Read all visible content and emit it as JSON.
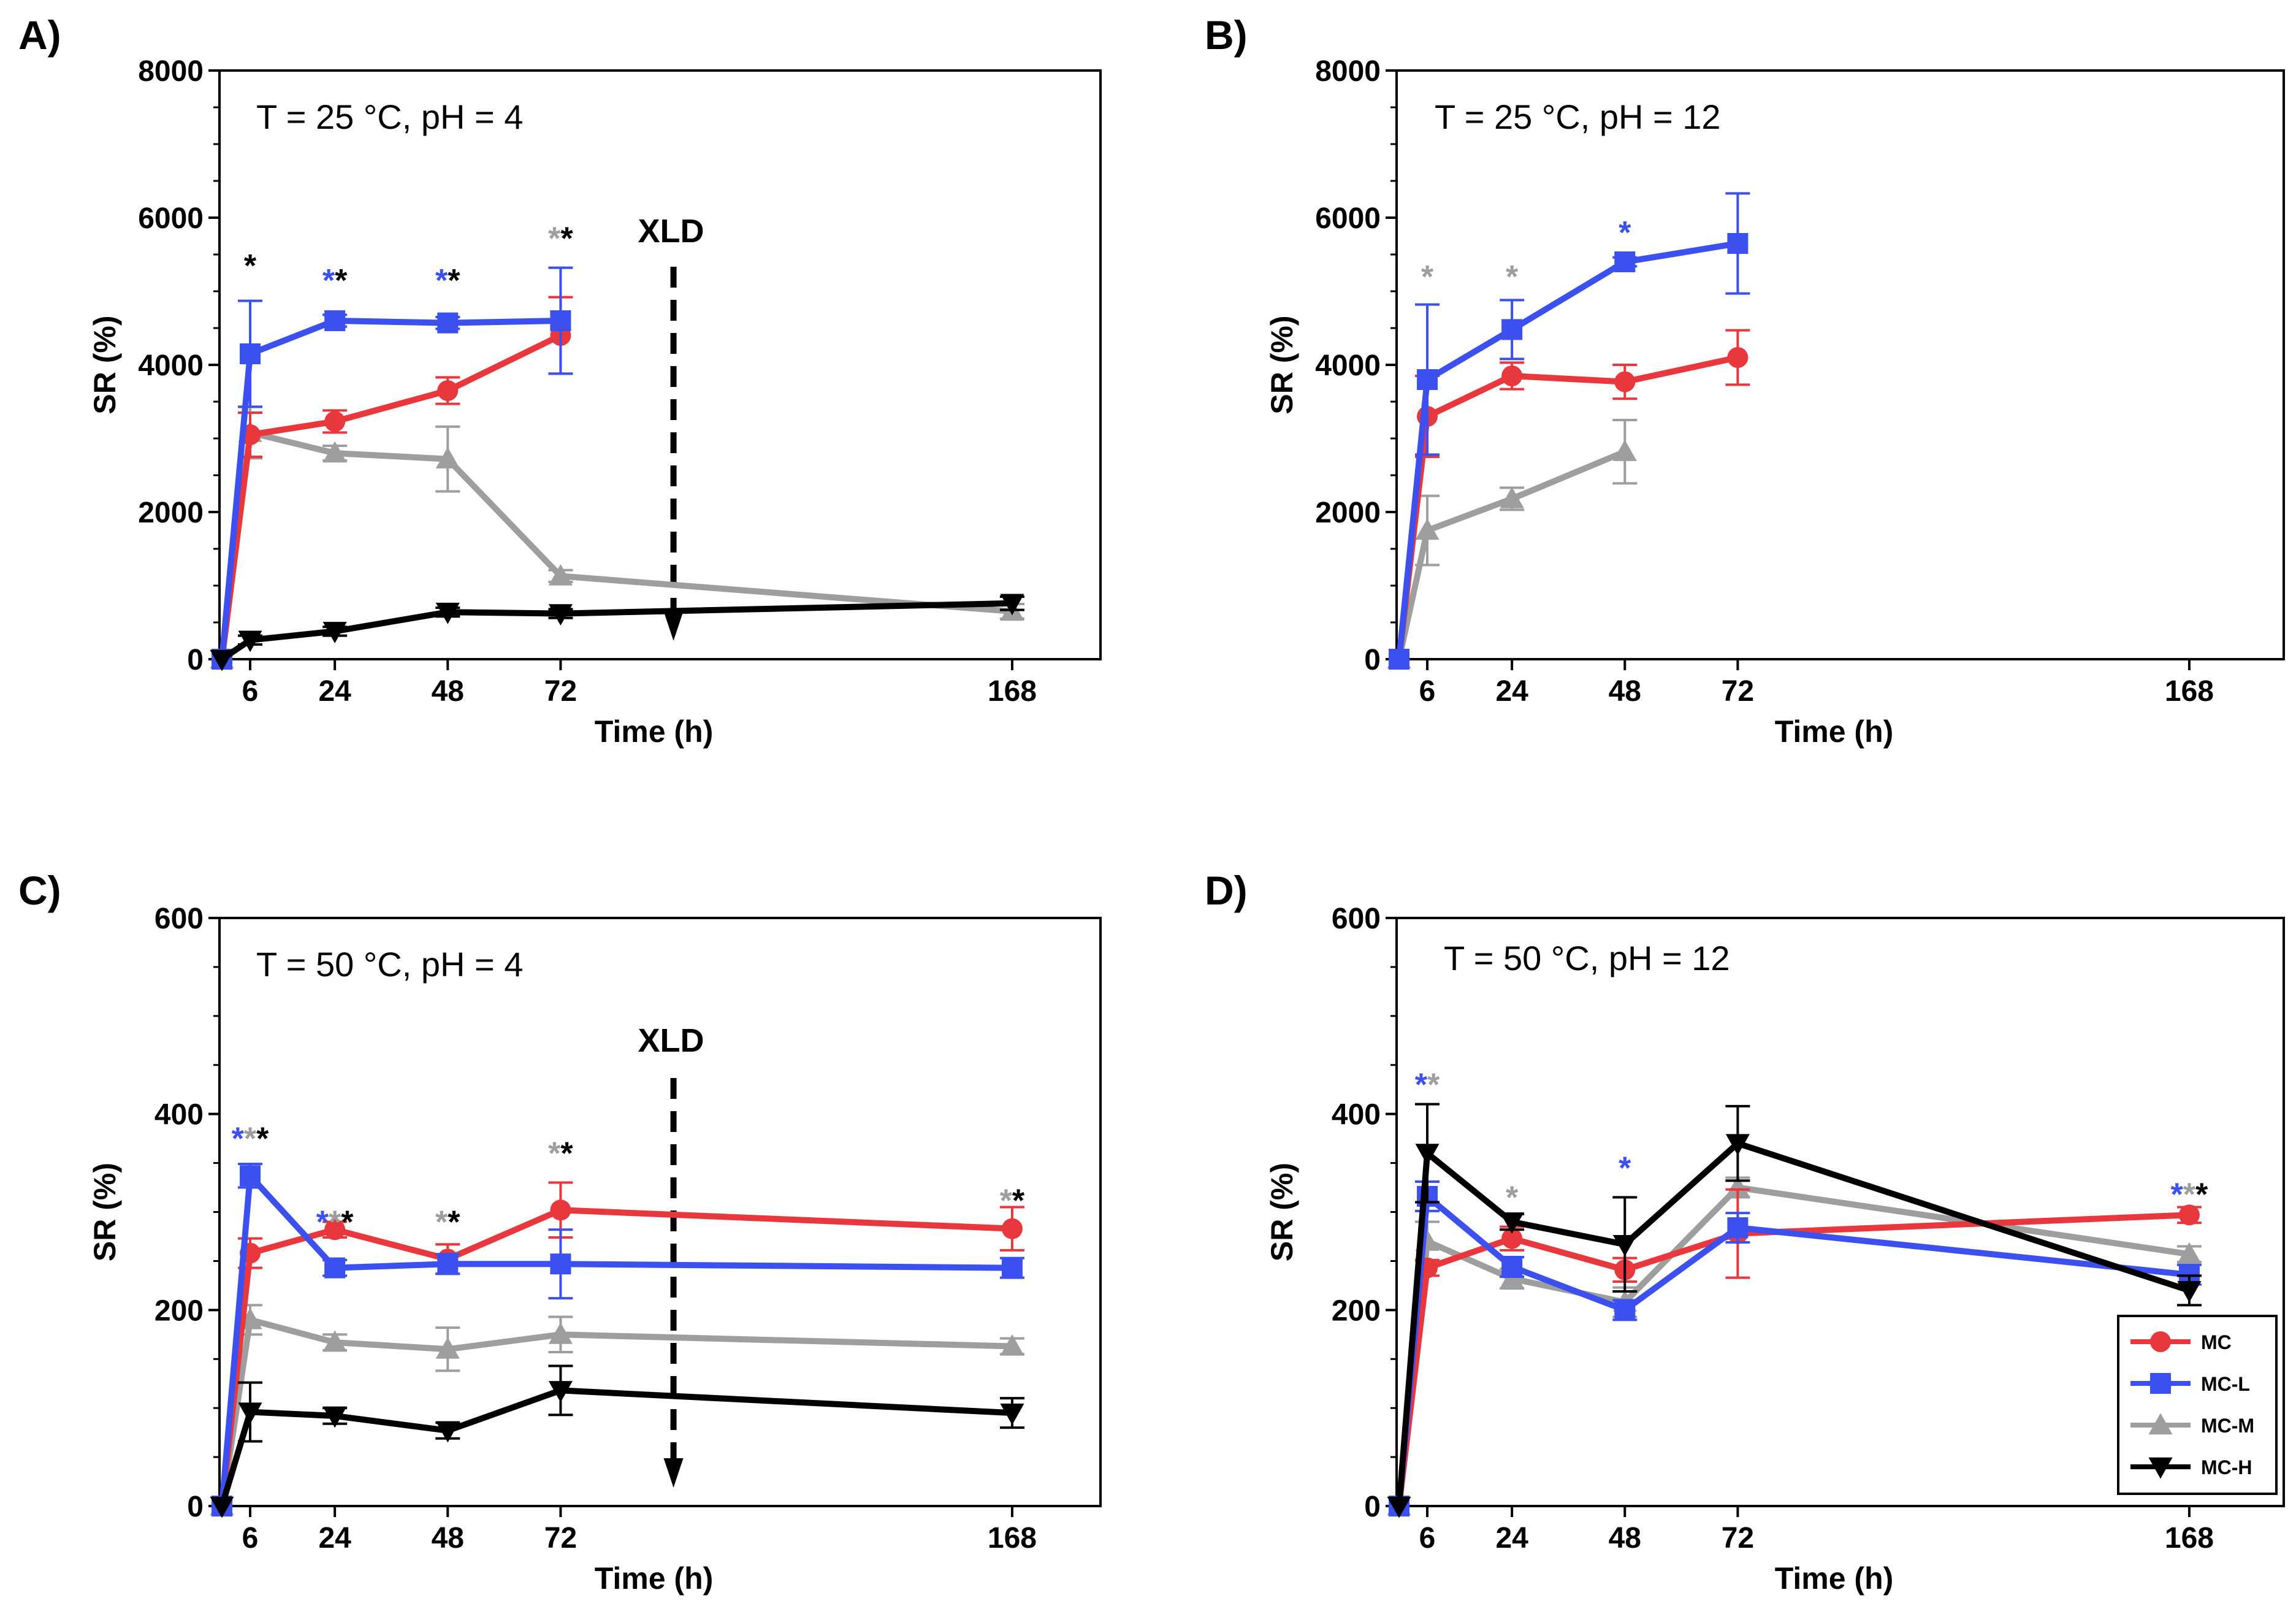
{
  "series_meta": [
    {
      "key": "MC",
      "name": "MC",
      "color": "#e8383d",
      "marker": "circle"
    },
    {
      "key": "MC-L",
      "name": "MC-L",
      "color": "#3c50f0",
      "marker": "square"
    },
    {
      "key": "MC-M",
      "name": "MC-M",
      "color": "#9e9e9e",
      "marker": "triangle-up"
    },
    {
      "key": "MC-H",
      "name": "MC-H",
      "color": "#000000",
      "marker": "triangle-down"
    }
  ],
  "chart_data": [
    {
      "panel": "A)",
      "type": "line",
      "condition": "T = 25 °C, pH = 4",
      "xlabel": "Time (h)",
      "ylabel": "SR (%)",
      "xticks": [
        6,
        24,
        48,
        72,
        168
      ],
      "yticks": [
        0,
        2000,
        4000,
        6000,
        8000
      ],
      "ylim": [
        0,
        8000
      ],
      "annotation": {
        "label": "XLD",
        "x": 96
      },
      "series": [
        {
          "name": "MC",
          "points": [
            {
              "x": 0,
              "y": 0,
              "err": 0
            },
            {
              "x": 6,
              "y": 3050,
              "err": 300
            },
            {
              "x": 24,
              "y": 3230,
              "err": 150
            },
            {
              "x": 48,
              "y": 3650,
              "err": 180
            },
            {
              "x": 72,
              "y": 4400,
              "err": 520
            }
          ]
        },
        {
          "name": "MC-L",
          "points": [
            {
              "x": 0,
              "y": 0,
              "err": 0
            },
            {
              "x": 6,
              "y": 4150,
              "err": 720
            },
            {
              "x": 24,
              "y": 4600,
              "err": 80
            },
            {
              "x": 48,
              "y": 4570,
              "err": 80
            },
            {
              "x": 72,
              "y": 4600,
              "err": 720
            }
          ]
        },
        {
          "name": "MC-M",
          "points": [
            {
              "x": 0,
              "y": 0,
              "err": 0
            },
            {
              "x": 6,
              "y": 3080,
              "err": 350
            },
            {
              "x": 24,
              "y": 2800,
              "err": 100
            },
            {
              "x": 48,
              "y": 2720,
              "err": 440
            },
            {
              "x": 72,
              "y": 1130,
              "err": 80
            },
            {
              "x": 168,
              "y": 650,
              "err": 100
            }
          ]
        },
        {
          "name": "MC-H",
          "points": [
            {
              "x": 0,
              "y": 0,
              "err": 0
            },
            {
              "x": 6,
              "y": 260,
              "err": 60
            },
            {
              "x": 24,
              "y": 380,
              "err": 60
            },
            {
              "x": 48,
              "y": 640,
              "err": 60
            },
            {
              "x": 72,
              "y": 620,
              "err": 60
            },
            {
              "x": 168,
              "y": 760,
              "err": 90
            }
          ]
        }
      ],
      "stars": [
        {
          "x": 6,
          "y": 5350,
          "colors": [
            "#000000"
          ]
        },
        {
          "x": 24,
          "y": 5150,
          "colors": [
            "#3c50f0",
            "#000000"
          ]
        },
        {
          "x": 48,
          "y": 5150,
          "colors": [
            "#3c50f0",
            "#000000"
          ]
        },
        {
          "x": 72,
          "y": 5720,
          "colors": [
            "#9e9e9e",
            "#000000"
          ]
        }
      ]
    },
    {
      "panel": "B)",
      "type": "line",
      "condition": "T = 25 °C, pH = 12",
      "xlabel": "Time (h)",
      "ylabel": "SR (%)",
      "xticks": [
        6,
        24,
        48,
        72,
        168
      ],
      "yticks": [
        0,
        2000,
        4000,
        6000,
        8000
      ],
      "ylim": [
        0,
        8000
      ],
      "series": [
        {
          "name": "MC",
          "points": [
            {
              "x": 0,
              "y": 0,
              "err": 0
            },
            {
              "x": 6,
              "y": 3300,
              "err": 550
            },
            {
              "x": 24,
              "y": 3850,
              "err": 180
            },
            {
              "x": 48,
              "y": 3770,
              "err": 230
            },
            {
              "x": 72,
              "y": 4100,
              "err": 370
            }
          ]
        },
        {
          "name": "MC-L",
          "points": [
            {
              "x": 0,
              "y": 0,
              "err": 0
            },
            {
              "x": 6,
              "y": 3800,
              "err": 1020
            },
            {
              "x": 24,
              "y": 4480,
              "err": 400
            },
            {
              "x": 48,
              "y": 5400,
              "err": 60
            },
            {
              "x": 72,
              "y": 5650,
              "err": 680
            }
          ]
        },
        {
          "name": "MC-M",
          "points": [
            {
              "x": 0,
              "y": 0,
              "err": 0
            },
            {
              "x": 6,
              "y": 1750,
              "err": 470
            },
            {
              "x": 24,
              "y": 2180,
              "err": 150
            },
            {
              "x": 48,
              "y": 2820,
              "err": 430
            }
          ]
        }
      ],
      "stars": [
        {
          "x": 6,
          "y": 5200,
          "colors": [
            "#9e9e9e"
          ]
        },
        {
          "x": 24,
          "y": 5200,
          "colors": [
            "#9e9e9e"
          ]
        },
        {
          "x": 48,
          "y": 5800,
          "colors": [
            "#3c50f0"
          ]
        }
      ]
    },
    {
      "panel": "C)",
      "type": "line",
      "condition": "T = 50 °C, pH = 4",
      "xlabel": "Time (h)",
      "ylabel": "SR (%)",
      "xticks": [
        6,
        24,
        48,
        72,
        168
      ],
      "yticks": [
        0,
        200,
        400,
        600
      ],
      "ylim": [
        0,
        600
      ],
      "annotation": {
        "label": "XLD",
        "x": 96
      },
      "series": [
        {
          "name": "MC",
          "points": [
            {
              "x": 0,
              "y": 0,
              "err": 0
            },
            {
              "x": 6,
              "y": 258,
              "err": 15
            },
            {
              "x": 24,
              "y": 282,
              "err": 8
            },
            {
              "x": 48,
              "y": 252,
              "err": 15
            },
            {
              "x": 72,
              "y": 302,
              "err": 28
            },
            {
              "x": 168,
              "y": 283,
              "err": 22
            }
          ]
        },
        {
          "name": "MC-L",
          "points": [
            {
              "x": 0,
              "y": 0,
              "err": 0
            },
            {
              "x": 6,
              "y": 337,
              "err": 12
            },
            {
              "x": 24,
              "y": 243,
              "err": 8
            },
            {
              "x": 48,
              "y": 247,
              "err": 10
            },
            {
              "x": 72,
              "y": 247,
              "err": 35
            },
            {
              "x": 168,
              "y": 243,
              "err": 10
            }
          ]
        },
        {
          "name": "MC-M",
          "points": [
            {
              "x": 0,
              "y": 0,
              "err": 0
            },
            {
              "x": 6,
              "y": 190,
              "err": 15
            },
            {
              "x": 24,
              "y": 167,
              "err": 8
            },
            {
              "x": 48,
              "y": 160,
              "err": 22
            },
            {
              "x": 72,
              "y": 175,
              "err": 18
            },
            {
              "x": 168,
              "y": 163,
              "err": 8
            }
          ]
        },
        {
          "name": "MC-H",
          "points": [
            {
              "x": 0,
              "y": 0,
              "err": 0
            },
            {
              "x": 6,
              "y": 96,
              "err": 30
            },
            {
              "x": 24,
              "y": 92,
              "err": 8
            },
            {
              "x": 48,
              "y": 77,
              "err": 8
            },
            {
              "x": 72,
              "y": 118,
              "err": 25
            },
            {
              "x": 168,
              "y": 95,
              "err": 15
            }
          ]
        }
      ],
      "stars": [
        {
          "x": 6,
          "y": 375,
          "colors": [
            "#3c50f0",
            "#9e9e9e",
            "#000000"
          ]
        },
        {
          "x": 24,
          "y": 290,
          "colors": [
            "#3c50f0",
            "#9e9e9e",
            "#000000"
          ]
        },
        {
          "x": 48,
          "y": 290,
          "colors": [
            "#9e9e9e",
            "#000000"
          ]
        },
        {
          "x": 72,
          "y": 360,
          "colors": [
            "#9e9e9e",
            "#000000"
          ]
        },
        {
          "x": 168,
          "y": 312,
          "colors": [
            "#9e9e9e",
            "#000000"
          ]
        }
      ]
    },
    {
      "panel": "D)",
      "type": "line",
      "condition": "T = 50 °C, pH = 12",
      "xlabel": "Time (h)",
      "ylabel": "SR (%)",
      "xticks": [
        6,
        24,
        48,
        72,
        168
      ],
      "yticks": [
        0,
        200,
        400,
        600
      ],
      "ylim": [
        0,
        600
      ],
      "legend": {
        "position": "bottom-right",
        "entries": [
          "MC",
          "MC-L",
          "MC-M",
          "MC-H"
        ]
      },
      "series": [
        {
          "name": "MC",
          "points": [
            {
              "x": 0,
              "y": 0,
              "err": 0
            },
            {
              "x": 6,
              "y": 243,
              "err": 8
            },
            {
              "x": 24,
              "y": 273,
              "err": 12
            },
            {
              "x": 48,
              "y": 241,
              "err": 12
            },
            {
              "x": 72,
              "y": 278,
              "err": 45
            },
            {
              "x": 168,
              "y": 297,
              "err": 8
            }
          ]
        },
        {
          "name": "MC-L",
          "points": [
            {
              "x": 0,
              "y": 0,
              "err": 0
            },
            {
              "x": 6,
              "y": 316,
              "err": 15
            },
            {
              "x": 24,
              "y": 244,
              "err": 10
            },
            {
              "x": 48,
              "y": 200,
              "err": 10
            },
            {
              "x": 72,
              "y": 284,
              "err": 15
            },
            {
              "x": 168,
              "y": 236,
              "err": 10
            }
          ]
        },
        {
          "name": "MC-M",
          "points": [
            {
              "x": 0,
              "y": 0,
              "err": 0
            },
            {
              "x": 6,
              "y": 270,
              "err": 20
            },
            {
              "x": 24,
              "y": 232,
              "err": 10
            },
            {
              "x": 48,
              "y": 208,
              "err": 15
            },
            {
              "x": 72,
              "y": 325,
              "err": 10
            },
            {
              "x": 168,
              "y": 257,
              "err": 8
            }
          ]
        },
        {
          "name": "MC-H",
          "points": [
            {
              "x": 0,
              "y": 0,
              "err": 0
            },
            {
              "x": 6,
              "y": 360,
              "err": 50
            },
            {
              "x": 24,
              "y": 290,
              "err": 8
            },
            {
              "x": 48,
              "y": 267,
              "err": 48
            },
            {
              "x": 72,
              "y": 370,
              "err": 38
            },
            {
              "x": 168,
              "y": 220,
              "err": 15
            }
          ]
        }
      ],
      "stars": [
        {
          "x": 6,
          "y": 430,
          "colors": [
            "#3c50f0",
            "#9e9e9e"
          ]
        },
        {
          "x": 24,
          "y": 315,
          "colors": [
            "#9e9e9e"
          ]
        },
        {
          "x": 48,
          "y": 345,
          "colors": [
            "#3c50f0"
          ]
        },
        {
          "x": 168,
          "y": 318,
          "colors": [
            "#3c50f0",
            "#9e9e9e",
            "#000000"
          ]
        }
      ]
    }
  ]
}
